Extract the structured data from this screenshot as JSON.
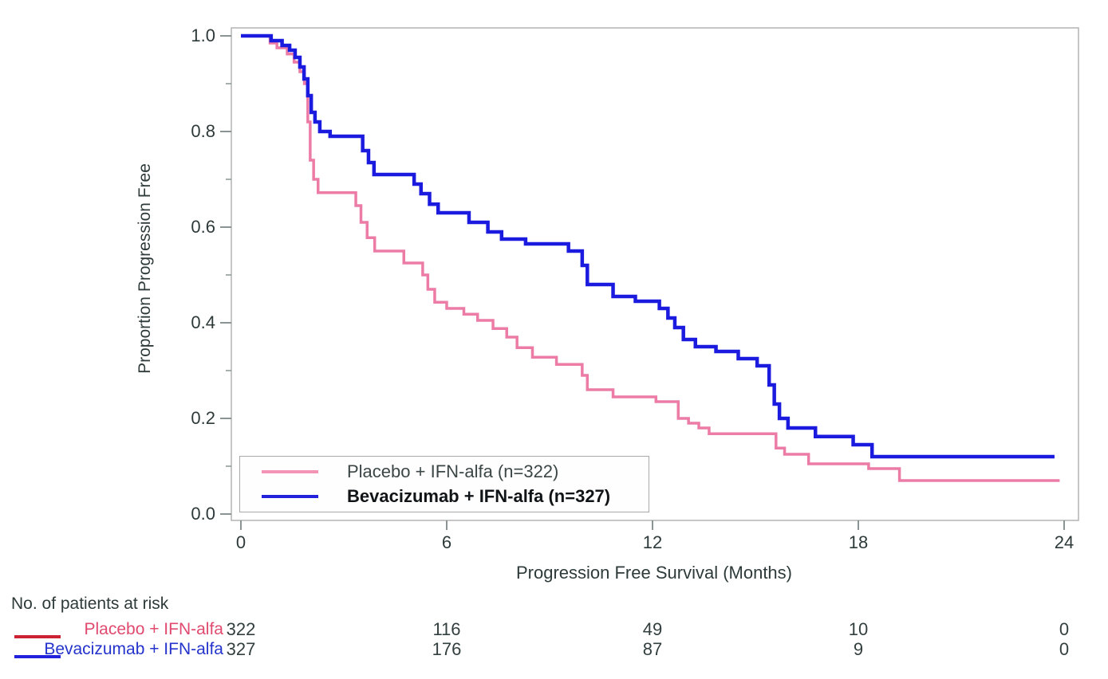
{
  "figure": {
    "y_axis_title": "Proportion Progression Free",
    "x_axis_title": "Progression Free Survival (Months)"
  },
  "chart_data": {
    "type": "line",
    "subtype": "kaplan-meier-step-survival",
    "title": "",
    "xlabel": "Progression Free Survival (Months)",
    "ylabel": "Proportion Progression Free",
    "xlim": [
      0,
      24
    ],
    "ylim": [
      0.0,
      1.0
    ],
    "x_ticks": [
      0,
      6,
      12,
      18,
      24
    ],
    "y_tick_values": [
      1.0,
      0.8,
      0.6,
      0.4,
      0.2,
      0.0
    ],
    "y_tick_labels": [
      "1.0",
      "0.8",
      "0.6",
      "0.4",
      "0.2",
      "0.0"
    ],
    "y_minor_tick_values": [
      0.9,
      0.7,
      0.5,
      0.3,
      0.1
    ],
    "grid": false,
    "legend_position": "inside-lower-left",
    "frame_color": "#b3b3b3",
    "tick_color": "#8a9494",
    "series": [
      {
        "name": "Placebo + IFN-alfa (n=322)",
        "color": "#ec7ca6",
        "line_width": 3.5,
        "end_x": 23.87,
        "points": [
          [
            0,
            1.0
          ],
          [
            0.85,
            0.985
          ],
          [
            1.05,
            0.975
          ],
          [
            1.35,
            0.962
          ],
          [
            1.55,
            0.945
          ],
          [
            1.72,
            0.925
          ],
          [
            1.85,
            0.9
          ],
          [
            1.95,
            0.82
          ],
          [
            2.02,
            0.74
          ],
          [
            2.12,
            0.7
          ],
          [
            2.25,
            0.672
          ],
          [
            3.35,
            0.645
          ],
          [
            3.5,
            0.61
          ],
          [
            3.68,
            0.578
          ],
          [
            3.9,
            0.55
          ],
          [
            4.75,
            0.525
          ],
          [
            5.3,
            0.5
          ],
          [
            5.45,
            0.47
          ],
          [
            5.65,
            0.443
          ],
          [
            6.0,
            0.43
          ],
          [
            6.5,
            0.418
          ],
          [
            6.9,
            0.405
          ],
          [
            7.35,
            0.388
          ],
          [
            7.75,
            0.37
          ],
          [
            8.05,
            0.348
          ],
          [
            8.5,
            0.328
          ],
          [
            9.2,
            0.313
          ],
          [
            9.95,
            0.29
          ],
          [
            10.1,
            0.26
          ],
          [
            10.85,
            0.245
          ],
          [
            12.1,
            0.235
          ],
          [
            12.75,
            0.2
          ],
          [
            13.05,
            0.19
          ],
          [
            13.35,
            0.18
          ],
          [
            13.65,
            0.168
          ],
          [
            15.6,
            0.138
          ],
          [
            15.85,
            0.125
          ],
          [
            16.55,
            0.105
          ],
          [
            18.3,
            0.095
          ],
          [
            19.2,
            0.07
          ]
        ]
      },
      {
        "name": "Bevacizumab + IFN-alfa (n=327)",
        "color": "#1b1be0",
        "line_width": 4.5,
        "end_x": 23.72,
        "points": [
          [
            0,
            1.0
          ],
          [
            0.88,
            0.99
          ],
          [
            1.2,
            0.98
          ],
          [
            1.42,
            0.97
          ],
          [
            1.58,
            0.955
          ],
          [
            1.72,
            0.935
          ],
          [
            1.84,
            0.91
          ],
          [
            1.95,
            0.875
          ],
          [
            2.05,
            0.84
          ],
          [
            2.16,
            0.82
          ],
          [
            2.3,
            0.8
          ],
          [
            2.6,
            0.79
          ],
          [
            3.55,
            0.76
          ],
          [
            3.72,
            0.735
          ],
          [
            3.88,
            0.71
          ],
          [
            5.05,
            0.69
          ],
          [
            5.25,
            0.67
          ],
          [
            5.5,
            0.648
          ],
          [
            5.75,
            0.63
          ],
          [
            6.65,
            0.61
          ],
          [
            7.2,
            0.59
          ],
          [
            7.6,
            0.575
          ],
          [
            8.3,
            0.565
          ],
          [
            9.55,
            0.55
          ],
          [
            9.95,
            0.52
          ],
          [
            10.1,
            0.48
          ],
          [
            10.85,
            0.455
          ],
          [
            11.5,
            0.445
          ],
          [
            12.2,
            0.43
          ],
          [
            12.45,
            0.41
          ],
          [
            12.65,
            0.39
          ],
          [
            12.9,
            0.365
          ],
          [
            13.25,
            0.35
          ],
          [
            13.85,
            0.34
          ],
          [
            14.5,
            0.325
          ],
          [
            15.05,
            0.31
          ],
          [
            15.4,
            0.27
          ],
          [
            15.55,
            0.23
          ],
          [
            15.7,
            0.2
          ],
          [
            15.95,
            0.18
          ],
          [
            16.75,
            0.162
          ],
          [
            17.85,
            0.145
          ],
          [
            18.4,
            0.12
          ]
        ]
      }
    ]
  },
  "legend": {
    "entries": [
      {
        "label": "Placebo + IFN-alfa (n=322)",
        "swatch_color": "#f394b6",
        "bold": false
      },
      {
        "label": "Bevacizumab + IFN-alfa (n=327)",
        "swatch_color": "#2222dd",
        "bold": true
      }
    ]
  },
  "risk_table": {
    "title": "No. of patients at risk",
    "columns_months": [
      0,
      6,
      12,
      18,
      24
    ],
    "rows": [
      {
        "label": "Placebo + IFN-alfa",
        "label_color": "#e04a6e",
        "swatch_color": "#cc2233",
        "counts": [
          "322",
          "116",
          "49",
          "10",
          "0"
        ]
      },
      {
        "label": "Bevacizumab + IFN-alfa",
        "label_color": "#2433cc",
        "swatch_color": "#2222dd",
        "counts": [
          "327",
          "176",
          "87",
          "9",
          "0"
        ]
      }
    ]
  }
}
